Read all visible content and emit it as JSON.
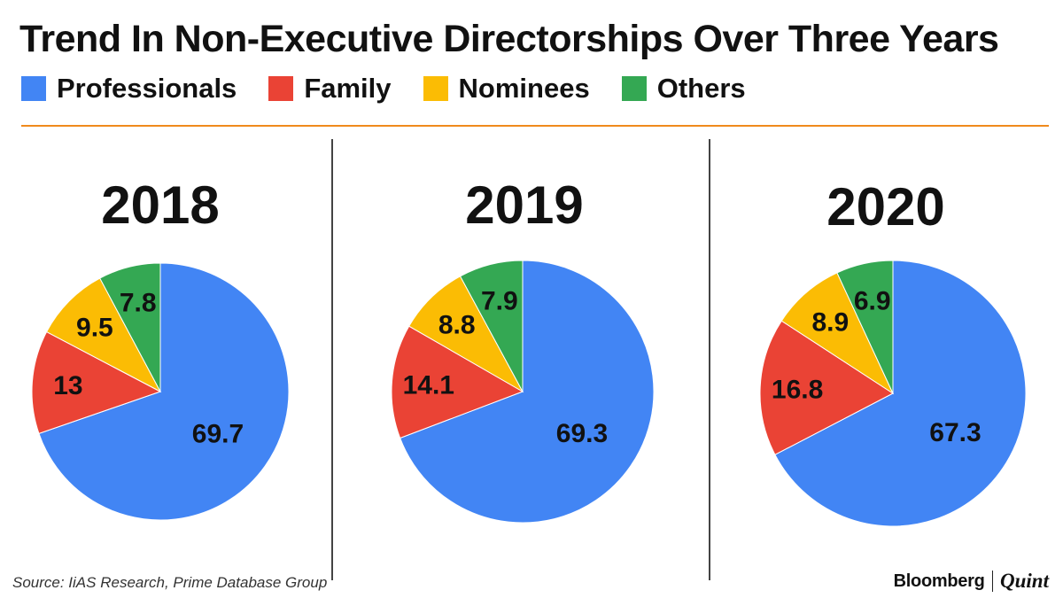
{
  "title": "Trend In Non-Executive Directorships Over Three Years",
  "legend": [
    {
      "label": "Professionals",
      "color": "#4285f4"
    },
    {
      "label": "Family",
      "color": "#ea4335"
    },
    {
      "label": "Nominees",
      "color": "#fbbc04"
    },
    {
      "label": "Others",
      "color": "#34a853"
    }
  ],
  "chart_data": [
    {
      "type": "pie",
      "title": "2018",
      "labels": [
        "Professionals",
        "Family",
        "Nominees",
        "Others"
      ],
      "values": [
        69.7,
        13,
        9.5,
        7.8
      ],
      "value_labels": [
        "69.7",
        "13",
        "9.5",
        "7.8"
      ]
    },
    {
      "type": "pie",
      "title": "2019",
      "labels": [
        "Professionals",
        "Family",
        "Nominees",
        "Others"
      ],
      "values": [
        69.3,
        14.1,
        8.8,
        7.9
      ],
      "value_labels": [
        "69.3",
        "14.1",
        "8.8",
        "7.9"
      ]
    },
    {
      "type": "pie",
      "title": "2020",
      "labels": [
        "Professionals",
        "Family",
        "Nominees",
        "Others"
      ],
      "values": [
        67.3,
        16.8,
        8.9,
        6.9
      ],
      "value_labels": [
        "67.3",
        "16.8",
        "8.9",
        "6.9"
      ]
    }
  ],
  "footer": {
    "source": "Source:  IiAS Research, Prime Database Group",
    "brand_primary": "Bloomberg",
    "brand_secondary": "Quint"
  }
}
